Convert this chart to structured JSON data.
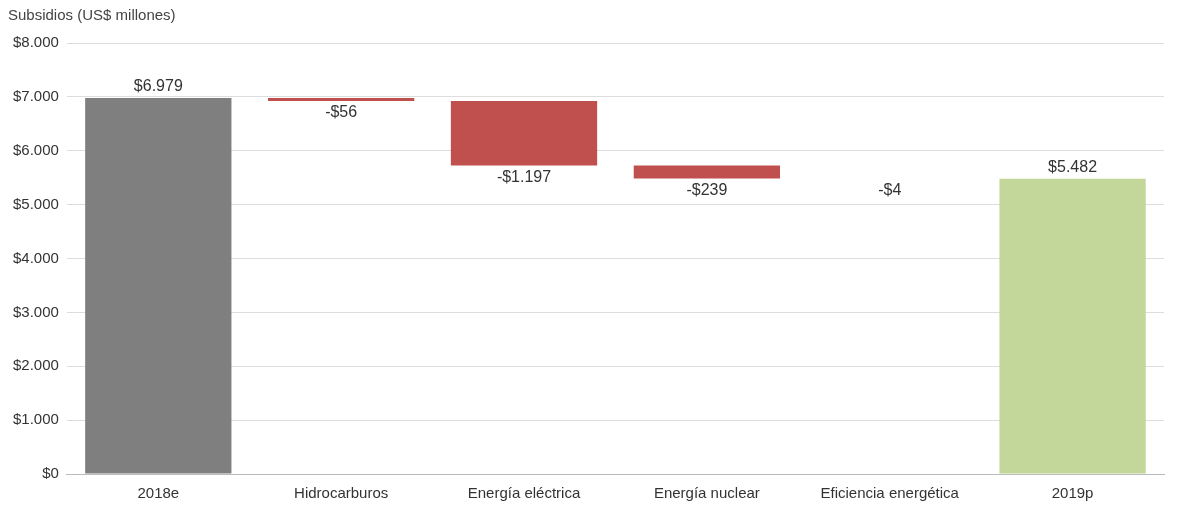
{
  "chart_data": {
    "type": "bar",
    "ylabel": "Subsidios (US$ millones)",
    "categories": [
      "2018e",
      "Hidrocarburos",
      "Energía eléctrica",
      "Energía nuclear",
      "Eficiencia energética",
      "2019p"
    ],
    "values": [
      6979,
      -56,
      -1197,
      -239,
      -4,
      5482
    ],
    "base": [
      0,
      6979,
      6923,
      5726,
      5487,
      0
    ],
    "colors": [
      "#7f7f7f",
      "#c0504d",
      "#c0504d",
      "#c0504d",
      "#c0504d",
      "#c4d79b"
    ],
    "value_labels": [
      "$6.979",
      "-$56",
      "-$1.197",
      "-$239",
      "-$4",
      "$5.482"
    ],
    "ylim": [
      0,
      8000
    ],
    "yticks": [
      {
        "value": 0,
        "label": "$0"
      },
      {
        "value": 1000,
        "label": "$1.000"
      },
      {
        "value": 2000,
        "label": "$2.000"
      },
      {
        "value": 3000,
        "label": "$3.000"
      },
      {
        "value": 4000,
        "label": "$4.000"
      },
      {
        "value": 5000,
        "label": "$5.000"
      },
      {
        "value": 6000,
        "label": "$6.000"
      },
      {
        "value": 7000,
        "label": "$7.000"
      },
      {
        "value": 8000,
        "label": "$8.000"
      }
    ],
    "grid": "y",
    "legend": false
  }
}
